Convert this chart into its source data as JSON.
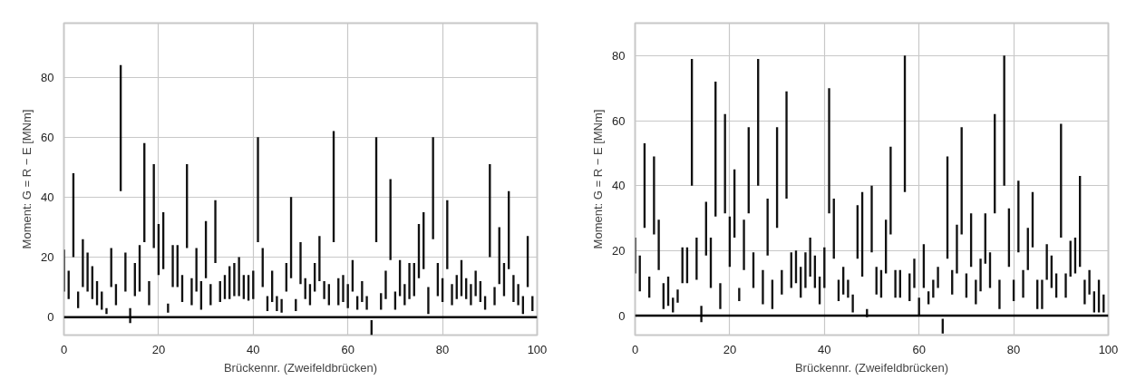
{
  "chart_data": [
    {
      "type": "bar",
      "xlabel": "Brückennr. (Zweifeldbrücken)",
      "ylabel": "Moment: G = R − E [MNm]",
      "color": "#111111",
      "grid": true,
      "xlim": [
        0,
        100
      ],
      "xticks": [
        0,
        20,
        40,
        60,
        80,
        100
      ],
      "ylim": [
        -6,
        98
      ],
      "yticks": [
        0,
        20,
        40,
        60,
        80
      ],
      "ref_lines": [
        {
          "axis": "y",
          "value": 0,
          "color": "#000000"
        }
      ],
      "x": [
        0,
        1,
        2,
        3,
        4,
        5,
        6,
        7,
        8,
        9,
        10,
        11,
        12,
        13,
        14,
        15,
        16,
        17,
        18,
        19,
        20,
        21,
        22,
        23,
        24,
        25,
        26,
        27,
        28,
        29,
        30,
        31,
        32,
        33,
        34,
        35,
        36,
        37,
        38,
        39,
        40,
        41,
        42,
        43,
        44,
        45,
        46,
        47,
        48,
        49,
        50,
        51,
        52,
        53,
        54,
        55,
        56,
        57,
        58,
        59,
        60,
        61,
        62,
        63,
        64,
        65,
        66,
        67,
        68,
        69,
        70,
        71,
        72,
        73,
        74,
        75,
        76,
        77,
        78,
        79,
        80,
        81,
        82,
        83,
        84,
        85,
        86,
        87,
        88,
        89,
        90,
        91,
        92,
        93,
        94,
        95,
        96,
        97,
        98,
        99
      ],
      "base": [
        8.5,
        6,
        20,
        3,
        10,
        8.5,
        6,
        4,
        2.5,
        1,
        10,
        4,
        42,
        8.5,
        -2,
        7,
        8.5,
        25,
        4,
        23,
        14,
        16,
        1.5,
        10,
        10,
        5,
        23,
        4,
        8.5,
        2.5,
        13,
        4,
        18,
        5,
        6,
        6,
        7,
        7,
        6,
        5.5,
        6,
        25,
        10,
        2,
        5,
        2,
        1.5,
        8.5,
        13,
        2,
        11,
        6,
        4,
        8.5,
        12,
        6,
        4,
        25,
        4,
        5,
        3,
        8.5,
        2.5,
        5,
        2.5,
        -6,
        25,
        2.5,
        6,
        19,
        2.5,
        7,
        4,
        6,
        7,
        13,
        16,
        1,
        26,
        7,
        5,
        16,
        4,
        6,
        7,
        6,
        4,
        7,
        5,
        2.5,
        20,
        4,
        11,
        7,
        16,
        5,
        4,
        1,
        10,
        2
      ],
      "values": [
        14,
        9.5,
        28,
        5.5,
        16,
        13,
        11,
        8,
        6,
        2,
        13,
        7,
        42,
        13,
        5,
        11,
        15.5,
        33,
        8,
        28,
        17,
        19,
        3,
        14,
        14,
        9,
        28,
        9,
        14.5,
        9.5,
        19,
        7,
        21,
        7,
        8,
        11,
        11,
        13,
        8,
        8.5,
        9.5,
        35,
        13,
        5,
        10.5,
        5,
        4.5,
        9.5,
        27,
        4,
        14,
        7,
        7,
        9.5,
        15,
        6,
        7,
        37,
        9,
        9,
        8,
        10.5,
        4.5,
        7,
        4.5,
        5,
        35,
        5.5,
        9.5,
        27,
        6,
        12,
        7,
        12,
        11,
        18,
        19,
        9,
        34,
        11,
        8,
        23,
        7,
        8,
        12,
        7,
        7,
        8.5,
        7,
        4.5,
        31,
        6,
        19,
        11,
        26,
        9,
        7,
        6,
        17,
        5
      ]
    },
    {
      "type": "bar",
      "xlabel": "Brückennr. (Zweifeldbrücken)",
      "ylabel": "Moment: G = R − E [MNm]",
      "color": "#111111",
      "grid": true,
      "xlim": [
        0,
        100
      ],
      "xticks": [
        0,
        20,
        40,
        60,
        80,
        100
      ],
      "ylim": [
        -6,
        90
      ],
      "yticks": [
        0,
        20,
        40,
        60,
        80
      ],
      "ref_lines": [
        {
          "axis": "y",
          "value": 0,
          "color": "#000000"
        }
      ],
      "x": [
        0,
        1,
        2,
        3,
        4,
        5,
        6,
        7,
        8,
        9,
        10,
        11,
        12,
        13,
        14,
        15,
        16,
        17,
        18,
        19,
        20,
        21,
        22,
        23,
        24,
        25,
        26,
        27,
        28,
        29,
        30,
        31,
        32,
        33,
        34,
        35,
        36,
        37,
        38,
        39,
        40,
        41,
        42,
        43,
        44,
        45,
        46,
        47,
        48,
        49,
        50,
        51,
        52,
        53,
        54,
        55,
        56,
        57,
        58,
        59,
        60,
        61,
        62,
        63,
        64,
        65,
        66,
        67,
        68,
        69,
        70,
        71,
        72,
        73,
        74,
        75,
        76,
        77,
        78,
        79,
        80,
        81,
        82,
        83,
        84,
        85,
        86,
        87,
        88,
        89,
        90,
        91,
        92,
        93,
        94,
        95,
        96,
        97,
        98,
        99
      ],
      "base": [
        13,
        7.5,
        27,
        5.5,
        25,
        14,
        2,
        3,
        1,
        4,
        10,
        10,
        40,
        11,
        -2,
        18.5,
        8.5,
        30.5,
        2,
        31.5,
        15,
        24,
        4.5,
        14,
        31.5,
        8.5,
        40,
        3.5,
        18.5,
        2,
        27,
        6.5,
        36,
        8.5,
        10,
        5.5,
        8.5,
        12,
        8.5,
        3.5,
        8.5,
        31.5,
        17.5,
        4.5,
        6.5,
        5.5,
        1,
        17.5,
        12,
        -0.5,
        19.5,
        6.5,
        5.5,
        13,
        25,
        5.5,
        5.5,
        38,
        4.5,
        8.5,
        0,
        8.5,
        3.5,
        5.5,
        8.5,
        -5.5,
        17.5,
        6.5,
        13,
        25,
        5.5,
        15,
        3.5,
        7.5,
        16,
        8.5,
        31.5,
        2,
        40,
        15,
        4.5,
        19.5,
        5.5,
        14,
        21,
        2,
        2,
        11,
        8.5,
        5.5,
        24,
        5.5,
        12,
        13,
        15,
        3.5,
        6.5,
        1,
        1,
        1
      ],
      "values": [
        11,
        11,
        26,
        6.5,
        24,
        15.5,
        8,
        9,
        4.5,
        4,
        11,
        11,
        39,
        13,
        5,
        16.5,
        15.5,
        41.5,
        8,
        30.5,
        15.5,
        21,
        4,
        15.5,
        26.5,
        11,
        39,
        10.5,
        17.5,
        9,
        31,
        7.5,
        33,
        11,
        10,
        9.5,
        11,
        12,
        10,
        8.5,
        12.5,
        38.5,
        18.5,
        6.5,
        8.5,
        5.5,
        5.5,
        16.5,
        26,
        2.5,
        20.5,
        8.5,
        8.5,
        16.5,
        27,
        8.5,
        8.5,
        42,
        8.5,
        9,
        5.5,
        13.5,
        4,
        5.5,
        6.5,
        4.5,
        31.5,
        7.5,
        15,
        33,
        7.5,
        16.5,
        7.5,
        10,
        15.5,
        11,
        30.5,
        9,
        40,
        18,
        6.5,
        22,
        8.5,
        13,
        17,
        9,
        9,
        11,
        10,
        7.5,
        35,
        7.5,
        11,
        11,
        28,
        7.5,
        7.5,
        6.5,
        10,
        5.5
      ]
    }
  ]
}
